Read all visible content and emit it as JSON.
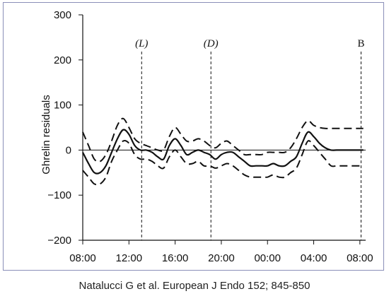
{
  "chart_data": {
    "type": "line",
    "ylabel": "Ghrelin residuals",
    "xlabel": "",
    "title": "",
    "ylim": [
      -200,
      300
    ],
    "yticks": [
      300,
      200,
      100,
      0,
      -100,
      -200
    ],
    "ytick_labels": [
      "300",
      "200",
      "100",
      "0",
      "−100",
      "−200"
    ],
    "xlim": [
      0,
      24.5
    ],
    "xticks": [
      0,
      4,
      8,
      12,
      16,
      20,
      24
    ],
    "xtick_labels": [
      "08:00",
      "12:00",
      "16:00",
      "20:00",
      "00:00",
      "04:00",
      "08:00"
    ],
    "zero_line": true,
    "markers": [
      {
        "label": "(L)",
        "x": 5.1,
        "italic": true
      },
      {
        "label": "(D)",
        "x": 11.1,
        "italic": true
      },
      {
        "label": "B",
        "x": 24.1,
        "italic": false
      }
    ],
    "series": [
      {
        "style": "solid",
        "x": [
          0,
          0.5,
          1,
          1.5,
          2,
          2.5,
          3,
          3.5,
          4,
          4.5,
          5,
          5.5,
          6,
          6.5,
          7,
          7.5,
          8,
          8.5,
          9,
          9.5,
          10,
          10.5,
          11,
          11.5,
          12,
          12.5,
          13,
          13.5,
          14,
          14.5,
          15,
          15.5,
          16,
          16.5,
          17,
          17.5,
          18,
          18.5,
          19,
          19.5,
          20,
          20.5,
          21,
          21.5,
          22,
          22.5,
          23,
          23.5,
          24,
          24.3
        ],
        "values": [
          -5,
          -30,
          -50,
          -50,
          -35,
          -5,
          25,
          45,
          35,
          10,
          0,
          0,
          -5,
          -15,
          -20,
          10,
          25,
          10,
          -10,
          -5,
          0,
          -5,
          -10,
          -20,
          -10,
          -5,
          -5,
          -15,
          -25,
          -35,
          -35,
          -35,
          -35,
          -30,
          -35,
          -35,
          -25,
          -15,
          15,
          40,
          30,
          15,
          5,
          0,
          0,
          0,
          0,
          0,
          0,
          0
        ]
      },
      {
        "style": "dashed",
        "x": [
          0,
          0.5,
          1,
          1.5,
          2,
          2.5,
          3,
          3.5,
          4,
          4.5,
          5,
          5.5,
          6,
          6.5,
          7,
          7.5,
          8,
          8.5,
          9,
          9.5,
          10,
          10.5,
          11,
          11.5,
          12,
          12.5,
          13,
          13.5,
          14,
          14.5,
          15,
          15.5,
          16,
          16.5,
          17,
          17.5,
          18,
          18.5,
          19,
          19.5,
          20,
          20.5,
          21,
          21.5,
          22,
          22.5,
          23,
          23.5,
          24,
          24.3
        ],
        "values": [
          40,
          10,
          -20,
          -25,
          -10,
          20,
          55,
          70,
          50,
          25,
          15,
          10,
          5,
          0,
          0,
          30,
          50,
          35,
          20,
          20,
          25,
          20,
          10,
          5,
          15,
          20,
          10,
          0,
          -10,
          -10,
          -10,
          -10,
          -5,
          -5,
          -5,
          -5,
          5,
          25,
          50,
          65,
          55,
          50,
          48,
          48,
          48,
          48,
          48,
          48,
          48,
          48
        ]
      },
      {
        "style": "dashed",
        "x": [
          0,
          0.5,
          1,
          1.5,
          2,
          2.5,
          3,
          3.5,
          4,
          4.5,
          5,
          5.5,
          6,
          6.5,
          7,
          7.5,
          8,
          8.5,
          9,
          9.5,
          10,
          10.5,
          11,
          11.5,
          12,
          12.5,
          13,
          13.5,
          14,
          14.5,
          15,
          15.5,
          16,
          16.5,
          17,
          17.5,
          18,
          18.5,
          19,
          19.5,
          20,
          20.5,
          21,
          21.5,
          22,
          22.5,
          23,
          23.5,
          24,
          24.3
        ],
        "values": [
          -45,
          -60,
          -75,
          -75,
          -60,
          -25,
          0,
          20,
          15,
          -10,
          -20,
          -20,
          -25,
          -35,
          -40,
          -15,
          0,
          -15,
          -30,
          -30,
          -25,
          -35,
          -35,
          -40,
          -35,
          -30,
          -35,
          -45,
          -55,
          -60,
          -60,
          -60,
          -60,
          -55,
          -60,
          -60,
          -50,
          -40,
          -10,
          20,
          10,
          -5,
          -20,
          -35,
          -35,
          -35,
          -35,
          -35,
          -35,
          -35
        ]
      }
    ]
  },
  "caption": "Natalucci G et al. European J Endo 152; 845-850"
}
